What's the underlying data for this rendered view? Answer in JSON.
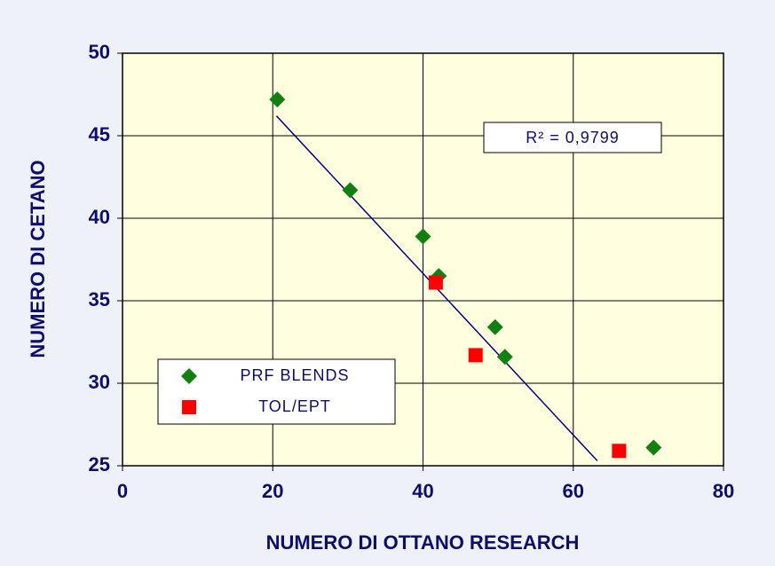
{
  "chart_data": {
    "type": "scatter",
    "xlabel": "NUMERO DI OTTANO RESEARCH",
    "ylabel": "NUMERO DI CETANO",
    "annotation": "R² = 0,9799",
    "xlim": [
      0,
      80
    ],
    "xticks": [
      0,
      20,
      40,
      60,
      80
    ],
    "ylim": [
      25,
      50
    ],
    "yticks": [
      25,
      30,
      35,
      40,
      45,
      50
    ],
    "grid": true,
    "legend": "lower left",
    "series": [
      {
        "name": "PRF BLENDS",
        "color": "#108010",
        "marker": "diamond",
        "x": [
          20.6,
          30.3,
          40,
          42.1,
          49.6,
          50.9,
          70.7
        ],
        "values": [
          47.2,
          41.7,
          38.9,
          36.5,
          33.4,
          31.6,
          26.1
        ]
      },
      {
        "name": "TOL/EPT",
        "color": "#ff0000",
        "marker": "square",
        "x": [
          41.7,
          47.0,
          66.1
        ],
        "values": [
          36.1,
          31.7,
          25.9
        ]
      }
    ],
    "trendline": {
      "color": "#000080",
      "x": [
        20.5,
        63.2
      ],
      "y": [
        46.2,
        25.3
      ]
    }
  }
}
